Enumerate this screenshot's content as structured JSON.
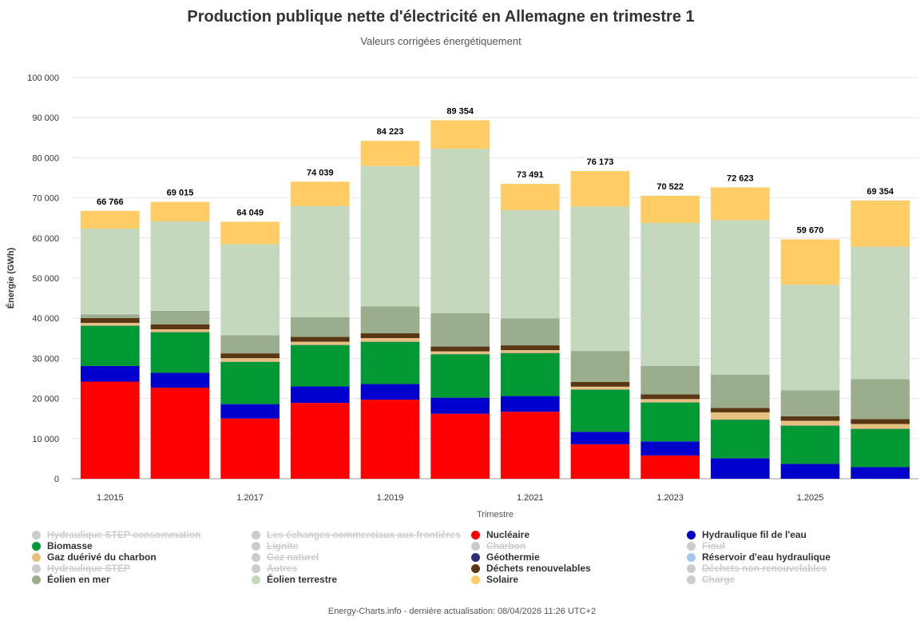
{
  "chart_data": {
    "type": "bar",
    "stacked": true,
    "title": "Production publique nette d'électricité en Allemagne en trimestre 1",
    "subtitle": "Valeurs corrigées énergétiquement",
    "xlabel": "Trimestre",
    "ylabel": "Énergie (GWh)",
    "ylim": [
      0,
      100000
    ],
    "yticks": [
      "0",
      "10 000",
      "20 000",
      "30 000",
      "40 000",
      "50 000",
      "60 000",
      "70 000",
      "80 000",
      "90 000",
      "100 000"
    ],
    "ytick_values": [
      0,
      10000,
      20000,
      30000,
      40000,
      50000,
      60000,
      70000,
      80000,
      90000,
      100000
    ],
    "categories": [
      "1.2015",
      "1.2016",
      "1.2017",
      "1.2018",
      "1.2019",
      "1.2020",
      "1.2021",
      "1.2022",
      "1.2023",
      "1.2024",
      "1.2025",
      "1.2026"
    ],
    "xtick_labels": [
      "1.2015",
      "",
      "1.2017",
      "",
      "1.2019",
      "",
      "1.2021",
      "",
      "1.2023",
      "",
      "1.2025",
      ""
    ],
    "totals": [
      "66 766",
      "69 015",
      "64 049",
      "74 039",
      "84 223",
      "89 354",
      "73 491",
      "76 173",
      "70 522",
      "72 623",
      "59 670",
      "69 354"
    ],
    "series": [
      {
        "name": "Nucléaire",
        "color": "#ff0000",
        "values": [
          24200,
          22700,
          15000,
          18900,
          19700,
          16200,
          16700,
          8600,
          5800,
          0,
          0,
          0
        ]
      },
      {
        "name": "Hydraulique fil de l'eau",
        "color": "#0000cd",
        "values": [
          3900,
          3700,
          3600,
          4100,
          3900,
          4000,
          3900,
          3100,
          3500,
          5100,
          3700,
          2900
        ]
      },
      {
        "name": "Biomasse",
        "color": "#009933",
        "values": [
          10000,
          10100,
          10500,
          10300,
          10500,
          10800,
          10700,
          10500,
          9700,
          9600,
          9500,
          9500
        ]
      },
      {
        "name": "Géothermie",
        "color": "#2c2c7a",
        "values": [
          50,
          50,
          50,
          50,
          50,
          50,
          50,
          50,
          50,
          50,
          50,
          50
        ]
      },
      {
        "name": "Gaz duérivé du charbon",
        "color": "#e6c080",
        "values": [
          700,
          700,
          900,
          800,
          900,
          700,
          700,
          700,
          800,
          1800,
          1200,
          1200
        ]
      },
      {
        "name": "Déchets renouvelables",
        "color": "#5a3714",
        "values": [
          1200,
          1200,
          1200,
          1200,
          1200,
          1200,
          1200,
          1200,
          1200,
          1100,
          1100,
          1200
        ]
      },
      {
        "name": "Éolien en mer",
        "color": "#9aad8c",
        "values": [
          900,
          3400,
          4500,
          4900,
          6700,
          8300,
          6700,
          7700,
          7100,
          8300,
          6500,
          10000
        ]
      },
      {
        "name": "Éolien terrestre",
        "color": "#c3d8bc",
        "values": [
          21400,
          22300,
          22700,
          27700,
          35000,
          41000,
          27000,
          36000,
          35600,
          38500,
          26300,
          33000
        ]
      },
      {
        "name": "Solaire",
        "color": "#ffcc66",
        "values": [
          4416,
          4865,
          5599,
          6089,
          6273,
          7104,
          6541,
          8823,
          6772,
          8173,
          11320,
          11504
        ]
      }
    ]
  },
  "legend": {
    "items": [
      {
        "label": "Hydraulique STEP consommation",
        "color": "#cccccc",
        "hidden": true,
        "col": 0,
        "row": 0
      },
      {
        "label": "Biomasse",
        "color": "#009933",
        "hidden": false,
        "col": 0,
        "row": 1
      },
      {
        "label": "Gaz duérivé du charbon",
        "color": "#e6c080",
        "hidden": false,
        "col": 0,
        "row": 2
      },
      {
        "label": "Hydraulique STEP",
        "color": "#cccccc",
        "hidden": true,
        "col": 0,
        "row": 3
      },
      {
        "label": "Éolien en mer",
        "color": "#9aad8c",
        "hidden": false,
        "col": 0,
        "row": 4
      },
      {
        "label": "Les échanges commerciaux aux frontières",
        "color": "#cccccc",
        "hidden": true,
        "col": 1,
        "row": 0
      },
      {
        "label": "Lignite",
        "color": "#cccccc",
        "hidden": true,
        "col": 1,
        "row": 1
      },
      {
        "label": "Gaz naturel",
        "color": "#cccccc",
        "hidden": true,
        "col": 1,
        "row": 2
      },
      {
        "label": "Autres",
        "color": "#cccccc",
        "hidden": true,
        "col": 1,
        "row": 3
      },
      {
        "label": "Éolien terrestre",
        "color": "#c3d8bc",
        "hidden": false,
        "col": 1,
        "row": 4
      },
      {
        "label": "Nucléaire",
        "color": "#ff0000",
        "hidden": false,
        "col": 2,
        "row": 0
      },
      {
        "label": "Charbon",
        "color": "#cccccc",
        "hidden": true,
        "col": 2,
        "row": 1
      },
      {
        "label": "Géothermie",
        "color": "#2c2c7a",
        "hidden": false,
        "col": 2,
        "row": 2
      },
      {
        "label": "Déchets renouvelables",
        "color": "#5a3714",
        "hidden": false,
        "col": 2,
        "row": 3
      },
      {
        "label": "Solaire",
        "color": "#ffcc66",
        "hidden": false,
        "col": 2,
        "row": 4
      },
      {
        "label": "Hydraulique fil de l'eau",
        "color": "#0000cd",
        "hidden": false,
        "col": 3,
        "row": 0
      },
      {
        "label": "Fioul",
        "color": "#cccccc",
        "hidden": true,
        "col": 3,
        "row": 1
      },
      {
        "label": "Réservoir d'eau hydraulique",
        "color": "#a5c8f0",
        "hidden": false,
        "col": 3,
        "row": 2
      },
      {
        "label": "Déchets non renouvelables",
        "color": "#cccccc",
        "hidden": true,
        "col": 3,
        "row": 3
      },
      {
        "label": "Charge",
        "color": "#cccccc",
        "hidden": true,
        "col": 3,
        "row": 4
      }
    ]
  },
  "footer": "Energy-Charts.info - dernière actualisation: 08/04/2026 11:26 UTC+2"
}
